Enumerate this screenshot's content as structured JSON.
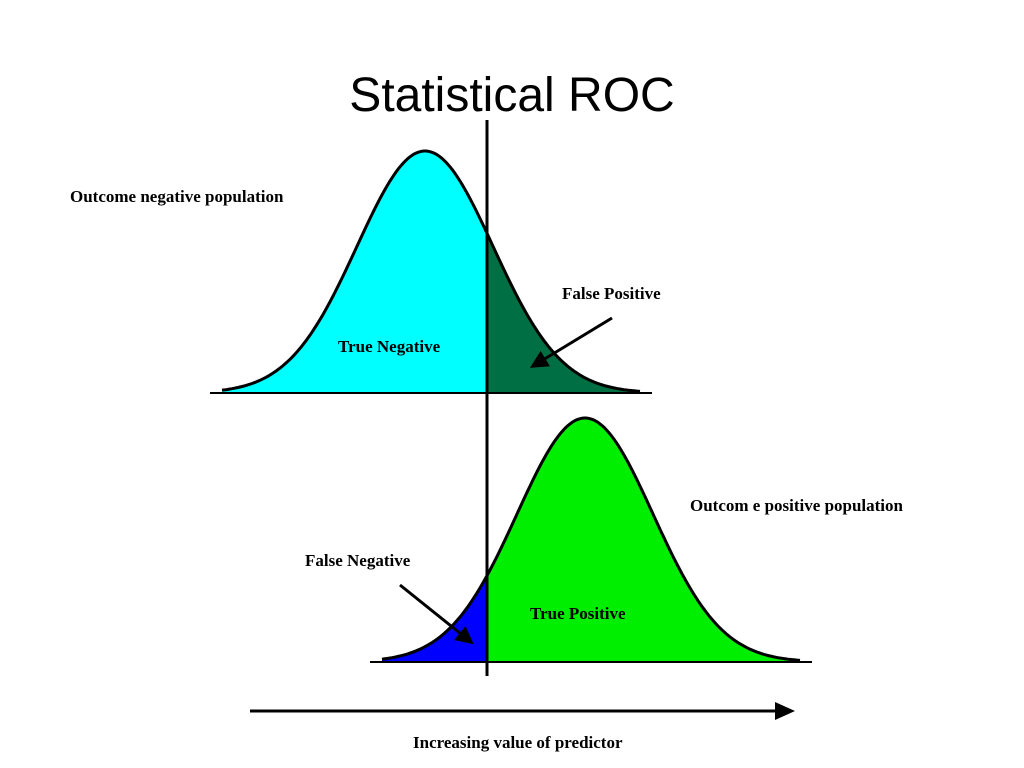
{
  "title": "Statistical ROC",
  "labels": {
    "negative_population": "Outcome negative population",
    "positive_population": "Outcom e positive population",
    "true_negative": "True Negative",
    "false_positive": "False Positive",
    "false_negative": "False Negative",
    "true_positive": "True Positive",
    "predictor_axis": "Increasing value of predictor"
  },
  "colors": {
    "true_negative": "#00ffff",
    "false_positive": "#006f43",
    "false_negative": "#0000ff",
    "true_positive": "#00ee00",
    "outline": "#000000"
  }
}
